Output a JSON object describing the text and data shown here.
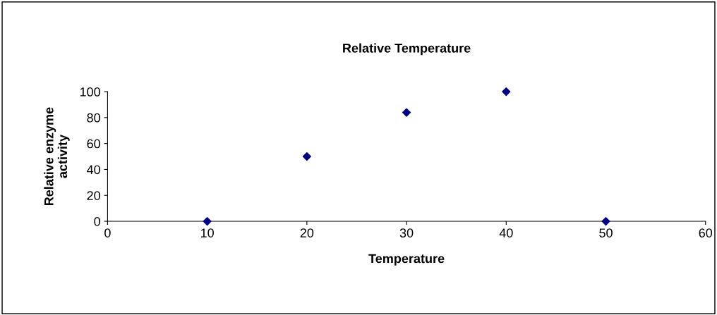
{
  "chart_data": {
    "type": "scatter",
    "title": "Relative Temperature",
    "xlabel": "Temperature",
    "ylabel": "Relative enzyme\nactivity",
    "x": [
      10,
      20,
      30,
      40,
      50
    ],
    "series": [
      {
        "color": "#000080",
        "values": [
          0,
          50,
          84,
          100,
          0
        ]
      }
    ],
    "xlim": [
      0,
      60
    ],
    "xticks": [
      0,
      10,
      20,
      30,
      40,
      50,
      60
    ],
    "ylim": [
      0,
      100
    ],
    "yticks": [
      0,
      20,
      40,
      60,
      80,
      100
    ],
    "marker": "diamond"
  }
}
